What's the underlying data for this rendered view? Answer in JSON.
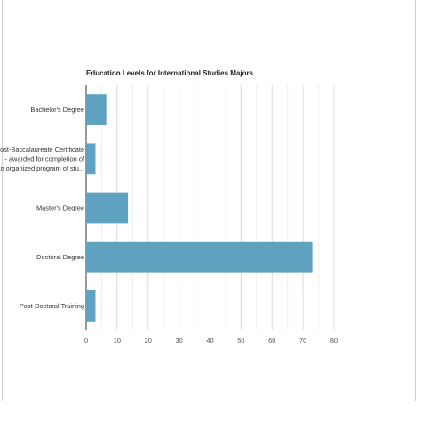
{
  "chart_data": {
    "type": "bar",
    "orientation": "horizontal",
    "title": "Education Levels for International Studies Majors",
    "categories": [
      [
        "Bachelor's Degree"
      ],
      [
        "Post-Baccalaureate Certificate",
        "- awarded for completion of",
        "an organized program of stu..."
      ],
      [
        "Master's Degree"
      ],
      [
        "Doctoral Degree"
      ],
      [
        "Post-Doctoral Training"
      ]
    ],
    "values": [
      6.5,
      3,
      13.5,
      73,
      3
    ],
    "xlim": [
      0,
      80
    ],
    "xticks": [
      0,
      10,
      20,
      30,
      40,
      50,
      60,
      70,
      80
    ],
    "grid": true,
    "bar_color": "#5fa2c0",
    "xlabel": "",
    "ylabel": ""
  }
}
